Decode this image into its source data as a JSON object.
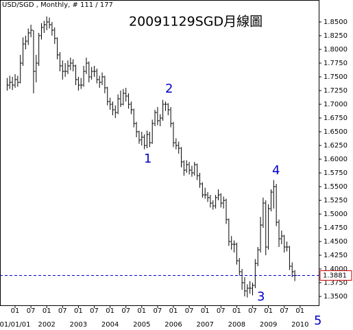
{
  "chart_data": {
    "type": "ohlc",
    "header": "USD/SGD , Monthly, # 111 / 177",
    "title": "20091129SGD月線圖",
    "x": [
      "2000-10",
      "2000-11",
      "2000-12",
      "2001-01",
      "2001-02",
      "2001-03",
      "2001-04",
      "2001-05",
      "2001-06",
      "2001-07",
      "2001-08",
      "2001-09",
      "2001-10",
      "2001-11",
      "2001-12",
      "2002-01",
      "2002-02",
      "2002-03",
      "2002-04",
      "2002-05",
      "2002-06",
      "2002-07",
      "2002-08",
      "2002-09",
      "2002-10",
      "2002-11",
      "2002-12",
      "2003-01",
      "2003-02",
      "2003-03",
      "2003-04",
      "2003-05",
      "2003-06",
      "2003-07",
      "2003-08",
      "2003-09",
      "2003-10",
      "2003-11",
      "2003-12",
      "2004-01",
      "2004-02",
      "2004-03",
      "2004-04",
      "2004-05",
      "2004-06",
      "2004-07",
      "2004-08",
      "2004-09",
      "2004-10",
      "2004-11",
      "2004-12",
      "2005-01",
      "2005-02",
      "2005-03",
      "2005-04",
      "2005-05",
      "2005-06",
      "2005-07",
      "2005-08",
      "2005-09",
      "2005-10",
      "2005-11",
      "2005-12",
      "2006-01",
      "2006-02",
      "2006-03",
      "2006-04",
      "2006-05",
      "2006-06",
      "2006-07",
      "2006-08",
      "2006-09",
      "2006-10",
      "2006-11",
      "2006-12",
      "2007-01",
      "2007-02",
      "2007-03",
      "2007-04",
      "2007-05",
      "2007-06",
      "2007-07",
      "2007-08",
      "2007-09",
      "2007-10",
      "2007-11",
      "2007-12",
      "2008-01",
      "2008-02",
      "2008-03",
      "2008-04",
      "2008-05",
      "2008-06",
      "2008-07",
      "2008-08",
      "2008-09",
      "2008-10",
      "2008-11",
      "2008-12",
      "2009-01",
      "2009-02",
      "2009-03",
      "2009-04",
      "2009-05",
      "2009-06",
      "2009-07",
      "2009-08",
      "2009-09",
      "2009-10",
      "2009-11"
    ],
    "high": [
      1.748,
      1.752,
      1.75,
      1.755,
      1.752,
      1.79,
      1.822,
      1.825,
      1.838,
      1.845,
      1.835,
      1.79,
      1.83,
      1.848,
      1.852,
      1.86,
      1.858,
      1.85,
      1.84,
      1.822,
      1.795,
      1.78,
      1.775,
      1.78,
      1.785,
      1.782,
      1.772,
      1.75,
      1.748,
      1.77,
      1.785,
      1.778,
      1.768,
      1.77,
      1.765,
      1.752,
      1.758,
      1.752,
      1.732,
      1.712,
      1.705,
      1.698,
      1.718,
      1.725,
      1.728,
      1.73,
      1.72,
      1.705,
      1.692,
      1.668,
      1.652,
      1.65,
      1.645,
      1.652,
      1.65,
      1.672,
      1.69,
      1.695,
      1.682,
      1.708,
      1.705,
      1.702,
      1.695,
      1.668,
      1.638,
      1.632,
      1.622,
      1.598,
      1.598,
      1.595,
      1.588,
      1.595,
      1.592,
      1.575,
      1.558,
      1.548,
      1.54,
      1.535,
      1.525,
      1.535,
      1.545,
      1.538,
      1.532,
      1.528,
      1.492,
      1.46,
      1.452,
      1.448,
      1.42,
      1.4,
      1.385,
      1.372,
      1.378,
      1.375,
      1.418,
      1.44,
      1.495,
      1.53,
      1.525,
      1.518,
      1.545,
      1.562,
      1.555,
      1.49,
      1.47,
      1.462,
      1.45,
      1.442,
      1.412,
      1.398
    ],
    "low": [
      1.725,
      1.728,
      1.726,
      1.73,
      1.732,
      1.738,
      1.77,
      1.8,
      1.808,
      1.822,
      1.72,
      1.74,
      1.77,
      1.818,
      1.83,
      1.835,
      1.838,
      1.825,
      1.81,
      1.782,
      1.76,
      1.745,
      1.75,
      1.755,
      1.762,
      1.76,
      1.735,
      1.725,
      1.728,
      1.732,
      1.755,
      1.74,
      1.745,
      1.75,
      1.738,
      1.73,
      1.735,
      1.72,
      1.698,
      1.69,
      1.68,
      1.675,
      1.682,
      1.695,
      1.698,
      1.705,
      1.692,
      1.682,
      1.658,
      1.64,
      1.628,
      1.625,
      1.618,
      1.62,
      1.622,
      1.628,
      1.66,
      1.662,
      1.66,
      1.67,
      1.688,
      1.68,
      1.658,
      1.622,
      1.618,
      1.61,
      1.585,
      1.57,
      1.575,
      1.572,
      1.568,
      1.57,
      1.562,
      1.548,
      1.53,
      1.528,
      1.522,
      1.512,
      1.508,
      1.51,
      1.525,
      1.512,
      1.51,
      1.482,
      1.442,
      1.435,
      1.43,
      1.408,
      1.388,
      1.362,
      1.35,
      1.348,
      1.355,
      1.352,
      1.365,
      1.405,
      1.43,
      1.475,
      1.425,
      1.435,
      1.505,
      1.51,
      1.478,
      1.44,
      1.445,
      1.43,
      1.432,
      1.398,
      1.385,
      1.378
    ],
    "close": [
      1.735,
      1.74,
      1.735,
      1.745,
      1.74,
      1.775,
      1.81,
      1.815,
      1.83,
      1.835,
      1.76,
      1.775,
      1.825,
      1.84,
      1.845,
      1.85,
      1.845,
      1.835,
      1.82,
      1.79,
      1.77,
      1.76,
      1.76,
      1.77,
      1.775,
      1.77,
      1.745,
      1.735,
      1.735,
      1.76,
      1.775,
      1.75,
      1.76,
      1.76,
      1.745,
      1.74,
      1.75,
      1.73,
      1.705,
      1.7,
      1.69,
      1.685,
      1.71,
      1.7,
      1.72,
      1.715,
      1.7,
      1.69,
      1.665,
      1.65,
      1.635,
      1.64,
      1.625,
      1.645,
      1.63,
      1.665,
      1.685,
      1.67,
      1.675,
      1.7,
      1.7,
      1.69,
      1.665,
      1.63,
      1.625,
      1.62,
      1.595,
      1.58,
      1.59,
      1.58,
      1.575,
      1.59,
      1.57,
      1.555,
      1.535,
      1.535,
      1.53,
      1.52,
      1.515,
      1.53,
      1.535,
      1.52,
      1.525,
      1.49,
      1.45,
      1.445,
      1.445,
      1.415,
      1.395,
      1.375,
      1.36,
      1.365,
      1.365,
      1.37,
      1.41,
      1.435,
      1.48,
      1.52,
      1.44,
      1.51,
      1.54,
      1.55,
      1.485,
      1.455,
      1.46,
      1.44,
      1.44,
      1.405,
      1.395,
      1.3881
    ],
    "color": "#000000",
    "ylim": [
      1.3338,
      1.89
    ],
    "yticks": [
      {
        "value": 1.35,
        "label": "1.3500"
      },
      {
        "value": 1.375,
        "label": "1.3750"
      },
      {
        "value": 1.4,
        "label": "1.4000"
      },
      {
        "value": 1.425,
        "label": "1.4250"
      },
      {
        "value": 1.45,
        "label": "1.4500"
      },
      {
        "value": 1.475,
        "label": "1.4750"
      },
      {
        "value": 1.5,
        "label": "1.5000"
      },
      {
        "value": 1.525,
        "label": "1.5250"
      },
      {
        "value": 1.55,
        "label": "1.5500"
      },
      {
        "value": 1.575,
        "label": "1.5750"
      },
      {
        "value": 1.6,
        "label": "1.6000"
      },
      {
        "value": 1.625,
        "label": "1.6250"
      },
      {
        "value": 1.65,
        "label": "1.6500"
      },
      {
        "value": 1.675,
        "label": "1.6750"
      },
      {
        "value": 1.7,
        "label": "1.7000"
      },
      {
        "value": 1.725,
        "label": "1.7250"
      },
      {
        "value": 1.75,
        "label": "1.7500"
      },
      {
        "value": 1.775,
        "label": "1.7750"
      },
      {
        "value": 1.8,
        "label": "1.8000"
      },
      {
        "value": 1.825,
        "label": "1.8250"
      },
      {
        "value": 1.85,
        "label": "1.8500"
      }
    ],
    "month_labels": [
      "01",
      "07",
      "01",
      "07",
      "01",
      "07",
      "01",
      "07",
      "01",
      "07",
      "01",
      "07",
      "01",
      "07",
      "01",
      "07",
      "01",
      "07",
      "01"
    ],
    "year_labels": [
      "01/01/01",
      "2002",
      "2003",
      "2004",
      "2005",
      "2006",
      "2007",
      "2008",
      "2009",
      "2010"
    ],
    "last_price": 1.3881,
    "last_price_color": "#0000c8",
    "annotations": [
      "1",
      "2",
      "3",
      "4",
      "5"
    ]
  }
}
